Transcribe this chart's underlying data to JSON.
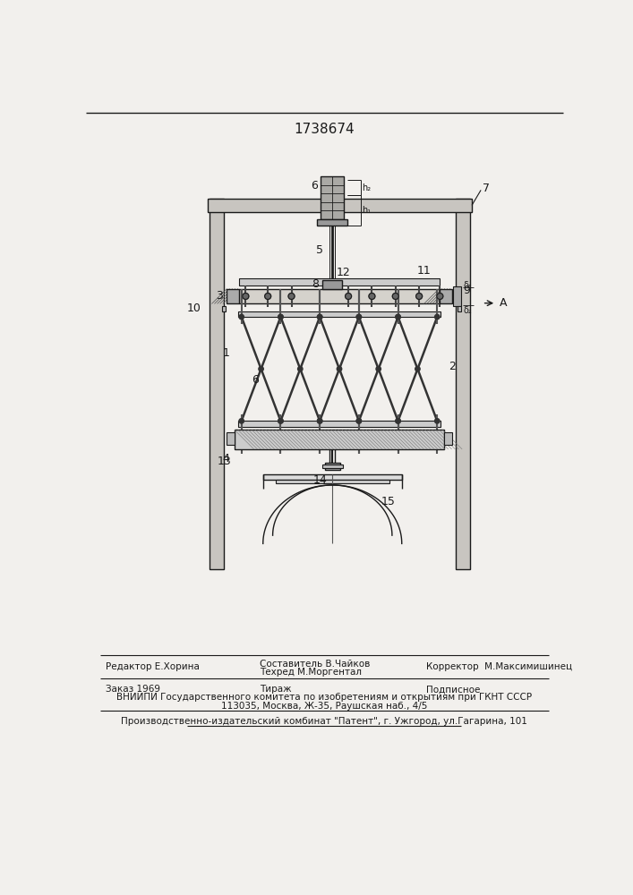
{
  "patent_number": "1738674",
  "bg_color": "#f2f0ed",
  "line_color": "#1a1a1a",
  "title_fontsize": 11,
  "footer": {
    "editor": "Редактор Е.Хорина",
    "composer": "Составитель В.Чайков",
    "techred": "Техред М.Моргентал",
    "corrector": "Корректор  М.Максимишинец",
    "order": "Заказ 1969",
    "tirazh": "Тираж",
    "podpisnoe": "Подписное",
    "vnipi1": "ВНИИПИ Государственного комитета по изобретениям и открытиям при ГКНТ СССР",
    "vnipi2": "113035, Москва, Ж-35, Раушская наб., 4/5",
    "patent_line": "Производственно-издательский комбинат \"Патент\", г. Ужгород, ул.Гагарина, 101"
  }
}
